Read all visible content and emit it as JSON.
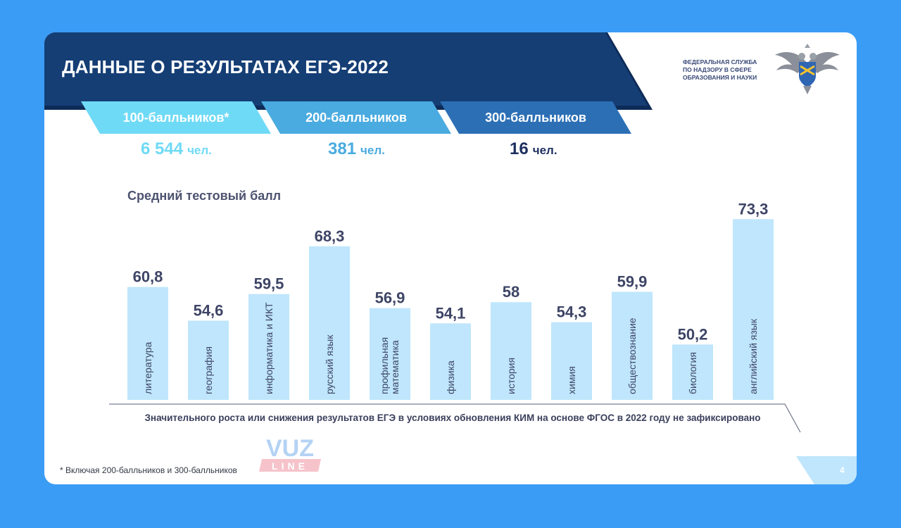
{
  "header": {
    "title": "ДАННЫЕ О РЕЗУЛЬТАТАХ ЕГЭ-2022",
    "agency_lines": [
      "ФЕДЕРАЛЬНАЯ СЛУЖБА",
      "ПО НАДЗОРУ В СФЕРЕ",
      "ОБРАЗОВАНИЯ И НАУКИ"
    ]
  },
  "tabs": [
    {
      "label": "100-балльников*",
      "count": "6 544",
      "unit": "чел.",
      "color": "#6fdaf6",
      "count_color": "#6fdaf6"
    },
    {
      "label": "200-балльников",
      "count": "381",
      "unit": "чел.",
      "color": "#4aabe0",
      "count_color": "#4aabe0"
    },
    {
      "label": "300-балльников",
      "count": "16",
      "unit": "чел.",
      "color": "#2c6fb5",
      "count_color": "#1d2f5f"
    }
  ],
  "chart_title": "Средний тестовый балл",
  "chart_data": {
    "type": "bar",
    "categories": [
      "литература",
      "география",
      "информатика и ИКТ",
      "русский язык",
      "профильная математика",
      "физика",
      "история",
      "химия",
      "обществознание",
      "биология",
      "английский язык"
    ],
    "values": [
      60.8,
      54.6,
      59.5,
      68.3,
      56.9,
      54.1,
      58,
      54.3,
      59.9,
      50.2,
      73.3
    ],
    "value_labels": [
      "60,8",
      "54,6",
      "59,5",
      "68,3",
      "56,9",
      "54,1",
      "58",
      "54,3",
      "59,9",
      "50,2",
      "73,3"
    ],
    "title": "Средний тестовый балл",
    "xlabel": "",
    "ylabel": "",
    "ylim": [
      0,
      100
    ],
    "grid": false,
    "bar_color": "#bfe6fc",
    "label_color": "#3e4566"
  },
  "footer_note": "Значительного роста или снижения результатов ЕГЭ в условиях обновления КИМ на основе ФГОС в 2022 году не зафиксировано",
  "watermark": {
    "top": "VUZ",
    "bottom": "LINE"
  },
  "footnote": "* Включая 200-балльников и 300-балльников",
  "page_number": "4",
  "colors": {
    "background": "#3b9cf5",
    "header_dark": "#153e75",
    "header_shadow": "#0e2b58"
  },
  "icons": [
    "double-headed-eagle-emblem-icon"
  ]
}
